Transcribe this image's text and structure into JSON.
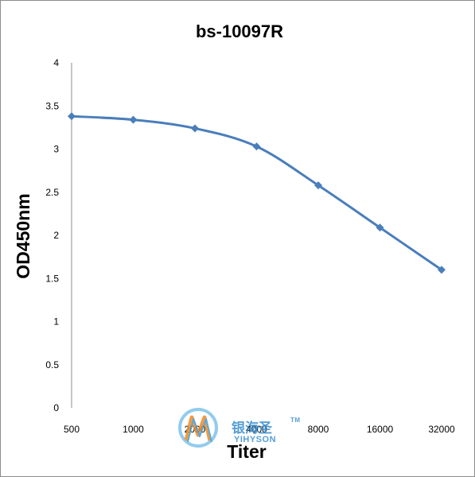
{
  "chart_data": {
    "type": "line",
    "title": "bs-10097R",
    "xlabel": "Titer",
    "ylabel": "OD450nm",
    "categories": [
      "500",
      "1000",
      "2000",
      "4000",
      "8000",
      "16000",
      "32000"
    ],
    "series": [
      {
        "values": [
          3.38,
          3.34,
          3.24,
          3.03,
          2.58,
          2.09,
          1.6
        ]
      }
    ],
    "ylim": [
      0,
      4
    ],
    "yticks": [
      "0",
      "0.5",
      "1",
      "1.5",
      "2",
      "2.5",
      "3",
      "3.5",
      "4"
    ],
    "grid": false,
    "legend": "none",
    "line_color": "#4a7ebb"
  },
  "watermark": {
    "text_cn": "银海圣",
    "tm": "TM",
    "text_en": "YIHYSON"
  }
}
